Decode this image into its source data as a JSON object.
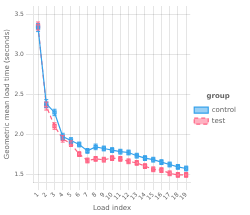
{
  "chart_data": {
    "type": "line",
    "xlabel": "Load index",
    "ylabel": "Geometric mean load time (seconds)",
    "x": [
      1,
      2,
      3,
      4,
      5,
      6,
      7,
      8,
      9,
      10,
      11,
      12,
      13,
      14,
      15,
      16,
      17,
      18,
      19
    ],
    "series": [
      {
        "name": "control",
        "marker": "square",
        "line_style": "solid",
        "values": [
          3.33,
          2.38,
          2.27,
          1.97,
          1.92,
          1.87,
          1.79,
          1.84,
          1.82,
          1.8,
          1.78,
          1.77,
          1.73,
          1.7,
          1.68,
          1.65,
          1.62,
          1.59,
          1.57
        ],
        "errors": [
          0.05,
          0.05,
          0.04,
          0.04,
          0.035,
          0.03,
          0.03,
          0.035,
          0.03,
          0.03,
          0.03,
          0.03,
          0.03,
          0.03,
          0.03,
          0.03,
          0.03,
          0.03,
          0.03
        ]
      },
      {
        "name": "test",
        "marker": "square",
        "line_style": "dashed",
        "values": [
          3.35,
          2.35,
          2.1,
          1.94,
          1.88,
          1.75,
          1.67,
          1.69,
          1.68,
          1.7,
          1.69,
          1.66,
          1.64,
          1.6,
          1.56,
          1.55,
          1.51,
          1.49,
          1.49
        ],
        "errors": [
          0.05,
          0.05,
          0.04,
          0.04,
          0.035,
          0.03,
          0.03,
          0.03,
          0.03,
          0.03,
          0.03,
          0.03,
          0.03,
          0.03,
          0.03,
          0.03,
          0.03,
          0.03,
          0.03
        ]
      }
    ],
    "xlim": [
      0.5,
      19.5
    ],
    "xticks": [
      1,
      2,
      3,
      4,
      5,
      6,
      7,
      8,
      9,
      10,
      11,
      12,
      13,
      14,
      15,
      16,
      17,
      18,
      19
    ],
    "ylim": [
      1.4,
      3.6
    ],
    "yticks": [
      1.5,
      {
        "value": 2.0,
        "label": "2.0"
      },
      2.5,
      {
        "value": 3.0,
        "label": "3.0"
      },
      3.5
    ],
    "legend_title": "group",
    "legend": "right",
    "grid": true
  }
}
